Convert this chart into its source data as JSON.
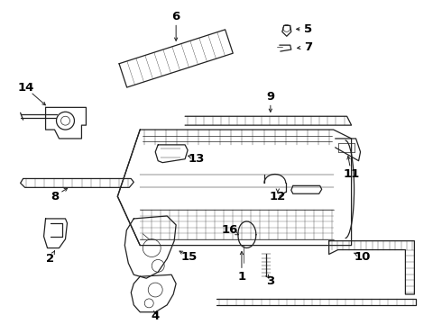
{
  "background_color": "#ffffff",
  "line_color": "#222222",
  "figsize": [
    4.9,
    3.6
  ],
  "dpi": 100
}
